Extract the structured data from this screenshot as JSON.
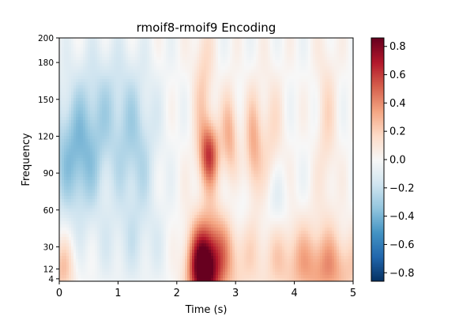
{
  "chart_data": {
    "type": "heatmap",
    "title": "rmoif8-rmoif9 Encoding",
    "xlabel": "Time (s)",
    "ylabel": "Frequency",
    "xlim": [
      0,
      5
    ],
    "ylim": [
      2,
      200
    ],
    "x_ticks": [
      0,
      1,
      2,
      3,
      4,
      5
    ],
    "x_tick_labels": [
      "0",
      "1",
      "2",
      "3",
      "4",
      "5"
    ],
    "y_ticks": [
      4,
      12,
      30,
      60,
      90,
      120,
      150,
      180,
      200
    ],
    "y_tick_labels": [
      "4",
      "12",
      "30",
      "60",
      "90",
      "120",
      "150",
      "180",
      "200"
    ],
    "colormap": "RdBu_r",
    "colorbar": {
      "vmin": -0.86,
      "vmax": 0.86,
      "ticks": [
        -0.8,
        -0.6,
        -0.4,
        -0.2,
        0.0,
        0.2,
        0.4,
        0.6,
        0.8
      ],
      "tick_labels": [
        "−0.8",
        "−0.6",
        "−0.4",
        "−0.2",
        "0.0",
        "0.2",
        "0.4",
        "0.6",
        "0.8"
      ]
    },
    "regions": [
      {
        "description": "strongest positive blob",
        "time": [
          2.2,
          2.9
        ],
        "freq": [
          4,
          55
        ],
        "peak_value": 0.85
      },
      {
        "description": "positive high-frequency blob",
        "time": [
          2.35,
          2.75
        ],
        "freq": [
          85,
          135
        ],
        "peak_value": 0.6
      },
      {
        "description": "weak positive band",
        "time": [
          2.2,
          4.9
        ],
        "freq": [
          4,
          200
        ],
        "peak_value": 0.3
      },
      {
        "description": "negative region",
        "time": [
          0.0,
          2.0
        ],
        "freq": [
          50,
          170
        ],
        "peak_value": -0.35
      }
    ]
  }
}
